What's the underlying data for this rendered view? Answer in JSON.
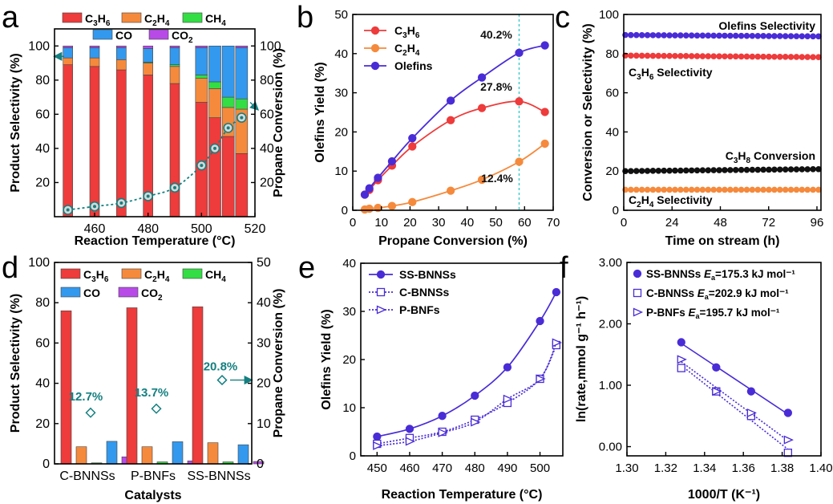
{
  "panel_labels": {
    "a": "a",
    "b": "b",
    "c": "c",
    "d": "d",
    "e": "e",
    "f": "f"
  },
  "colors": {
    "C3H6": "#ee3b3b",
    "C2H4": "#f58a3c",
    "CH4": "#33dd44",
    "CO": "#3399ee",
    "CO2": "#b84be8",
    "conv": "#147f80",
    "olefins": "#4a2cd6",
    "c_black": "#111111",
    "cyan": "#33cccc"
  },
  "chart_data": [
    {
      "id": "a",
      "type": "bar",
      "xlabel": "Reaction Temperature (°C)",
      "ylabel": "Product Selectivity (%)",
      "y2label": "Propane Conversion (%)",
      "xlim": [
        445,
        520
      ],
      "ylim": [
        0,
        110
      ],
      "y2lim": [
        0,
        110
      ],
      "xticks": [
        460,
        480,
        500,
        520
      ],
      "yticks": [
        20,
        40,
        60,
        80,
        100
      ],
      "y2ticks": [
        20,
        40,
        60,
        80,
        100
      ],
      "legend": [
        "C3H6",
        "C2H4",
        "CH4",
        "CO",
        "CO2"
      ],
      "x": [
        450,
        460,
        470,
        480,
        490,
        500,
        505,
        510,
        515
      ],
      "series": [
        {
          "name": "C3H6",
          "values": [
            89,
            88,
            86,
            83,
            78,
            67,
            58,
            47,
            37
          ]
        },
        {
          "name": "C2H4",
          "values": [
            4,
            5,
            6,
            7,
            10,
            14,
            17,
            17,
            26
          ]
        },
        {
          "name": "CH4",
          "values": [
            0,
            0,
            0,
            0.5,
            1,
            2,
            4,
            6,
            6
          ]
        },
        {
          "name": "CO",
          "values": [
            6,
            6,
            7,
            8,
            10,
            16,
            21,
            30,
            30
          ]
        },
        {
          "name": "CO2",
          "values": [
            1,
            1,
            1,
            1.5,
            1,
            1,
            0,
            0,
            1
          ]
        }
      ],
      "conversion": {
        "x": [
          450,
          460,
          470,
          480,
          490,
          500,
          505,
          510,
          515
        ],
        "values": [
          4,
          6,
          8,
          12,
          17,
          30,
          40,
          52,
          58
        ]
      }
    },
    {
      "id": "b",
      "type": "line",
      "xlabel": "Propane Conversion (%)",
      "ylabel": "Olefins Yield (%)",
      "xlim": [
        0,
        70
      ],
      "ylim": [
        0,
        50
      ],
      "xticks": [
        0,
        10,
        20,
        30,
        40,
        50,
        60,
        70
      ],
      "yticks": [
        0,
        10,
        20,
        30,
        40,
        50
      ],
      "legend": [
        "C3H6",
        "C2H4",
        "Olefins"
      ],
      "series": [
        {
          "name": "C3H6",
          "x": [
            4.2,
            5.8,
            8.8,
            13.7,
            20.8,
            34.2,
            45.1,
            58.1,
            67.1
          ],
          "values": [
            4,
            5.2,
            7.7,
            11.4,
            16.3,
            23,
            26.1,
            27.8,
            25.1
          ]
        },
        {
          "name": "C2H4",
          "x": [
            4.2,
            5.8,
            8.8,
            13.7,
            20.8,
            34.2,
            45.1,
            58.1,
            67.1
          ],
          "values": [
            0.2,
            0.4,
            0.6,
            1.1,
            2.1,
            5,
            7.8,
            12.4,
            17
          ]
        },
        {
          "name": "Olefins",
          "x": [
            4.2,
            5.8,
            8.8,
            13.7,
            20.8,
            34.2,
            45.1,
            58.1,
            67.1
          ],
          "values": [
            4,
            5.6,
            8.3,
            12.5,
            18.4,
            28,
            33.9,
            40.2,
            42.1
          ]
        }
      ],
      "vline": 58.1,
      "annotations": [
        "40.2%",
        "27.8%",
        "12.4%"
      ]
    },
    {
      "id": "c",
      "type": "scatter",
      "xlabel": "Time on stream (h)",
      "ylabel": "Conversion or Selectivity (%)",
      "xlim": [
        0,
        98
      ],
      "ylim": [
        0,
        100
      ],
      "xticks": [
        0,
        24,
        48,
        72,
        96
      ],
      "yticks": [
        0,
        20,
        40,
        60,
        80,
        100
      ],
      "series": [
        {
          "name": "Olefins Selectivity",
          "x_start": 0,
          "x_end": 96,
          "count": 36,
          "y_start": 89.5,
          "y_end": 88.8
        },
        {
          "name": "C3H6 Selectivity",
          "x_start": 0,
          "x_end": 96,
          "count": 36,
          "y_start": 79,
          "y_end": 78.2
        },
        {
          "name": "C3H8 Conversion",
          "x_start": 0,
          "x_end": 96,
          "count": 36,
          "y_start": 20,
          "y_end": 21
        },
        {
          "name": "C2H4 Selectivity",
          "x_start": 0,
          "x_end": 96,
          "count": 36,
          "y_start": 10.5,
          "y_end": 10.5
        }
      ],
      "labels": [
        "Olefins Selectivity",
        "C3H6 Selectivity",
        "C3H8 Conversion",
        "C2H4 Selectivity"
      ]
    },
    {
      "id": "d",
      "type": "bar",
      "xlabel": "Catalysts",
      "ylabel": "Product Selectivity (%)",
      "y2label": "Propane Conversion (%)",
      "categories": [
        "C-BNNSs",
        "P-BNFs",
        "SS-BNNSs"
      ],
      "ylim": [
        0,
        100
      ],
      "y2lim": [
        0,
        50
      ],
      "yticks": [
        0,
        20,
        40,
        60,
        80,
        100
      ],
      "y2ticks": [
        0,
        10,
        20,
        30,
        40,
        50
      ],
      "legend": [
        "C3H6",
        "C2H4",
        "CH4",
        "CO",
        "CO2"
      ],
      "series": [
        {
          "name": "C3H6",
          "values": [
            76,
            77.5,
            78
          ]
        },
        {
          "name": "C2H4",
          "values": [
            8.5,
            8.5,
            10.5
          ]
        },
        {
          "name": "CH4",
          "values": [
            0.5,
            1,
            1
          ]
        },
        {
          "name": "CO",
          "values": [
            11.2,
            11,
            9.5
          ]
        },
        {
          "name": "CO2",
          "values": [
            3.5,
            1.5,
            1.2
          ]
        }
      ],
      "conversion": [
        12.7,
        13.7,
        20.8
      ],
      "annotations": [
        "12.7%",
        "13.7%",
        "20.8%"
      ]
    },
    {
      "id": "e",
      "type": "line",
      "xlabel": "Reaction Temperature (°C)",
      "ylabel": "Olefins Yield (%)",
      "xlim": [
        445,
        507
      ],
      "ylim": [
        0,
        40
      ],
      "xticks": [
        450,
        460,
        470,
        480,
        490,
        500
      ],
      "yticks": [
        0,
        10,
        20,
        30,
        40
      ],
      "legend": [
        "SS-BNNSs",
        "C-BNNSs",
        "P-BNFs"
      ],
      "series": [
        {
          "name": "SS-BNNSs",
          "x": [
            450,
            460,
            470,
            480,
            490,
            500,
            505
          ],
          "values": [
            4,
            5.6,
            8.3,
            12.5,
            18.4,
            28,
            34
          ]
        },
        {
          "name": "C-BNNSs",
          "x": [
            450,
            460,
            470,
            480,
            490,
            500,
            505
          ],
          "values": [
            2.5,
            3.7,
            5,
            7.5,
            11,
            16,
            23
          ]
        },
        {
          "name": "P-BNFs",
          "x": [
            450,
            460,
            470,
            480,
            490,
            500,
            505
          ],
          "values": [
            2.1,
            3,
            4.8,
            7,
            11.8,
            16,
            23.5
          ]
        }
      ]
    },
    {
      "id": "f",
      "type": "scatter",
      "xlabel": "1000/T (K⁻¹)",
      "ylabel": "ln(rate,mmol g⁻¹ h⁻¹)",
      "xlim": [
        1.3,
        1.4
      ],
      "ylim": [
        -0.15,
        3.0
      ],
      "xticks": [
        1.3,
        1.32,
        1.34,
        1.36,
        1.38,
        1.4
      ],
      "yticks": [
        0.0,
        1.0,
        2.0,
        3.0
      ],
      "series": [
        {
          "name": "SS-BNNSs",
          "Ea": "175.3",
          "x": [
            1.328,
            1.346,
            1.364,
            1.383
          ],
          "values": [
            1.7,
            1.29,
            0.9,
            0.55
          ]
        },
        {
          "name": "C-BNNSs",
          "Ea": "202.9",
          "x": [
            1.328,
            1.346,
            1.364,
            1.383
          ],
          "values": [
            1.28,
            0.9,
            0.5,
            -0.1
          ]
        },
        {
          "name": "P-BNFs",
          "Ea": "195.7",
          "x": [
            1.328,
            1.346,
            1.364,
            1.383
          ],
          "values": [
            1.42,
            0.9,
            0.55,
            0.11
          ]
        }
      ],
      "legend_unit": "kJ mol⁻¹"
    }
  ]
}
